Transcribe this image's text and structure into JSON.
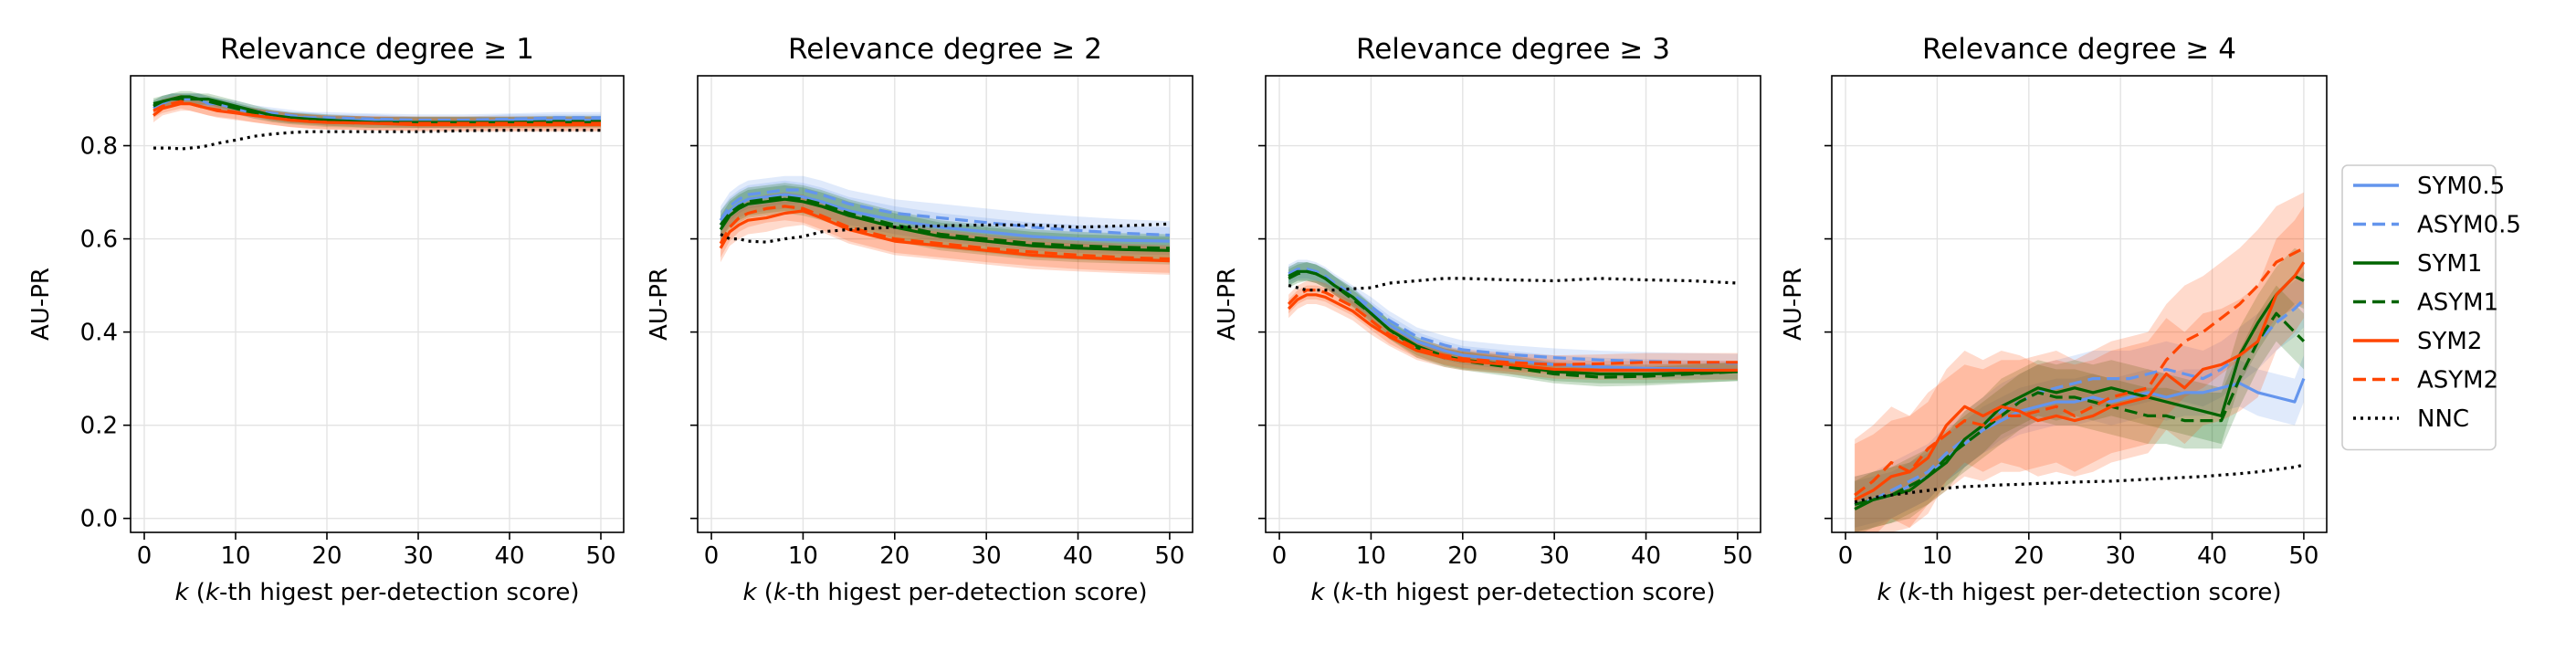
{
  "colors": {
    "SYM0.5": "#6495ED",
    "ASYM0.5": "#6495ED",
    "SYM1": "#006400",
    "ASYM1": "#006400",
    "SYM2": "#FF4500",
    "ASYM2": "#FF4500",
    "NNC": "#000000"
  },
  "legend": {
    "placement": "right of last panel",
    "entries": [
      {
        "name": "SYM0.5",
        "style": "solid"
      },
      {
        "name": "ASYM0.5",
        "style": "dashed"
      },
      {
        "name": "SYM1",
        "style": "solid"
      },
      {
        "name": "ASYM1",
        "style": "dashed"
      },
      {
        "name": "SYM2",
        "style": "solid"
      },
      {
        "name": "ASYM2",
        "style": "dashed"
      },
      {
        "name": "NNC",
        "style": "dotted"
      }
    ]
  },
  "chart_data": [
    {
      "type": "line",
      "title": "Relevance degree ≥ 1",
      "xlabel": "k (k-th higest per-detection score)",
      "ylabel": "AU-PR",
      "xlim": [
        -1.5,
        52.5
      ],
      "ylim": [
        -0.03,
        0.95
      ],
      "xticks": [
        0,
        10,
        20,
        30,
        40,
        50
      ],
      "yticks": [
        0.0,
        0.2,
        0.4,
        0.6,
        0.8
      ],
      "yticklabels": [
        "0.0",
        "0.2",
        "0.4",
        "0.6",
        "0.8"
      ],
      "grid": true,
      "x": [
        1,
        2,
        3,
        4,
        5,
        6,
        7,
        8,
        10,
        12,
        14,
        16,
        18,
        20,
        25,
        30,
        35,
        40,
        45,
        50
      ],
      "series": [
        {
          "name": "SYM0.5",
          "values": [
            0.88,
            0.89,
            0.9,
            0.9,
            0.9,
            0.9,
            0.89,
            0.89,
            0.88,
            0.87,
            0.865,
            0.86,
            0.86,
            0.855,
            0.855,
            0.85,
            0.85,
            0.855,
            0.855,
            0.855
          ],
          "band": 0.012
        },
        {
          "name": "ASYM0.5",
          "values": [
            0.885,
            0.895,
            0.9,
            0.9,
            0.9,
            0.9,
            0.895,
            0.89,
            0.885,
            0.875,
            0.87,
            0.865,
            0.86,
            0.86,
            0.857,
            0.855,
            0.855,
            0.857,
            0.86,
            0.86
          ],
          "band": 0.012
        },
        {
          "name": "SYM1",
          "values": [
            0.89,
            0.895,
            0.9,
            0.905,
            0.905,
            0.9,
            0.9,
            0.895,
            0.885,
            0.875,
            0.865,
            0.86,
            0.857,
            0.855,
            0.85,
            0.85,
            0.85,
            0.85,
            0.85,
            0.85
          ],
          "band": 0.012
        },
        {
          "name": "ASYM1",
          "values": [
            0.885,
            0.895,
            0.9,
            0.9,
            0.9,
            0.9,
            0.895,
            0.89,
            0.88,
            0.87,
            0.862,
            0.858,
            0.855,
            0.852,
            0.85,
            0.85,
            0.85,
            0.85,
            0.852,
            0.852
          ],
          "band": 0.012
        },
        {
          "name": "SYM2",
          "values": [
            0.865,
            0.88,
            0.885,
            0.89,
            0.89,
            0.885,
            0.88,
            0.875,
            0.87,
            0.865,
            0.86,
            0.855,
            0.852,
            0.85,
            0.848,
            0.845,
            0.845,
            0.845,
            0.845,
            0.845
          ],
          "band": 0.015
        },
        {
          "name": "ASYM2",
          "values": [
            0.875,
            0.885,
            0.89,
            0.895,
            0.89,
            0.885,
            0.88,
            0.877,
            0.872,
            0.865,
            0.86,
            0.855,
            0.852,
            0.85,
            0.848,
            0.848,
            0.848,
            0.848,
            0.848,
            0.848
          ],
          "band": 0.015
        },
        {
          "name": "NNC",
          "values": [
            0.795,
            0.795,
            0.795,
            0.793,
            0.795,
            0.797,
            0.8,
            0.805,
            0.812,
            0.82,
            0.825,
            0.828,
            0.83,
            0.83,
            0.83,
            0.83,
            0.832,
            0.833,
            0.833,
            0.833
          ],
          "band": 0
        }
      ]
    },
    {
      "type": "line",
      "title": "Relevance degree ≥ 2",
      "xlabel": "k (k-th higest per-detection score)",
      "ylabel": "AU-PR",
      "xlim": [
        -1.5,
        52.5
      ],
      "ylim": [
        -0.03,
        0.95
      ],
      "xticks": [
        0,
        10,
        20,
        30,
        40,
        50
      ],
      "yticks": [
        0.0,
        0.2,
        0.4,
        0.6,
        0.8
      ],
      "yticklabels": [],
      "grid": true,
      "x": [
        1,
        2,
        3,
        4,
        6,
        8,
        10,
        12,
        15,
        20,
        25,
        30,
        35,
        40,
        45,
        50
      ],
      "series": [
        {
          "name": "SYM0.5",
          "values": [
            0.63,
            0.66,
            0.675,
            0.685,
            0.69,
            0.695,
            0.69,
            0.68,
            0.66,
            0.64,
            0.625,
            0.615,
            0.605,
            0.6,
            0.597,
            0.595
          ],
          "band": 0.03
        },
        {
          "name": "ASYM0.5",
          "values": [
            0.64,
            0.67,
            0.685,
            0.695,
            0.7,
            0.705,
            0.705,
            0.695,
            0.675,
            0.655,
            0.645,
            0.635,
            0.625,
            0.618,
            0.612,
            0.608
          ],
          "band": 0.03
        },
        {
          "name": "SYM1",
          "values": [
            0.62,
            0.65,
            0.665,
            0.675,
            0.68,
            0.685,
            0.68,
            0.67,
            0.65,
            0.625,
            0.605,
            0.595,
            0.585,
            0.58,
            0.577,
            0.575
          ],
          "band": 0.03
        },
        {
          "name": "ASYM1",
          "values": [
            0.63,
            0.655,
            0.67,
            0.68,
            0.685,
            0.69,
            0.685,
            0.675,
            0.655,
            0.63,
            0.61,
            0.6,
            0.59,
            0.585,
            0.582,
            0.58
          ],
          "band": 0.03
        },
        {
          "name": "SYM2",
          "values": [
            0.58,
            0.615,
            0.63,
            0.64,
            0.645,
            0.655,
            0.66,
            0.645,
            0.62,
            0.595,
            0.585,
            0.575,
            0.565,
            0.56,
            0.556,
            0.553
          ],
          "band": 0.03
        },
        {
          "name": "ASYM2",
          "values": [
            0.59,
            0.625,
            0.645,
            0.655,
            0.665,
            0.67,
            0.665,
            0.65,
            0.625,
            0.6,
            0.59,
            0.58,
            0.572,
            0.565,
            0.56,
            0.557
          ],
          "band": 0.03
        },
        {
          "name": "NNC",
          "values": [
            0.61,
            0.6,
            0.6,
            0.595,
            0.593,
            0.6,
            0.605,
            0.615,
            0.62,
            0.625,
            0.628,
            0.63,
            0.63,
            0.625,
            0.628,
            0.632
          ],
          "band": 0
        }
      ]
    },
    {
      "type": "line",
      "title": "Relevance degree ≥ 3",
      "xlabel": "k (k-th higest per-detection score)",
      "ylabel": "AU-PR",
      "xlim": [
        -1.5,
        52.5
      ],
      "ylim": [
        -0.03,
        0.95
      ],
      "xticks": [
        0,
        10,
        20,
        30,
        40,
        50
      ],
      "yticks": [
        0.0,
        0.2,
        0.4,
        0.6,
        0.8
      ],
      "yticklabels": [],
      "grid": true,
      "x": [
        1,
        2,
        3,
        4,
        5,
        6,
        8,
        10,
        12,
        15,
        18,
        20,
        25,
        30,
        35,
        40,
        45,
        50
      ],
      "series": [
        {
          "name": "SYM0.5",
          "values": [
            0.52,
            0.53,
            0.53,
            0.525,
            0.515,
            0.5,
            0.475,
            0.445,
            0.415,
            0.38,
            0.36,
            0.35,
            0.34,
            0.33,
            0.325,
            0.322,
            0.32,
            0.318
          ],
          "band": 0.02
        },
        {
          "name": "ASYM0.5",
          "values": [
            0.525,
            0.535,
            0.535,
            0.53,
            0.52,
            0.505,
            0.48,
            0.455,
            0.425,
            0.39,
            0.372,
            0.362,
            0.352,
            0.345,
            0.34,
            0.337,
            0.335,
            0.333
          ],
          "band": 0.02
        },
        {
          "name": "SYM1",
          "values": [
            0.52,
            0.53,
            0.53,
            0.525,
            0.515,
            0.5,
            0.475,
            0.44,
            0.405,
            0.37,
            0.348,
            0.34,
            0.33,
            0.315,
            0.31,
            0.31,
            0.312,
            0.315
          ],
          "band": 0.02
        },
        {
          "name": "ASYM1",
          "values": [
            0.515,
            0.525,
            0.53,
            0.525,
            0.515,
            0.5,
            0.47,
            0.44,
            0.405,
            0.365,
            0.345,
            0.338,
            0.325,
            0.31,
            0.303,
            0.305,
            0.31,
            0.315
          ],
          "band": 0.02
        },
        {
          "name": "SYM2",
          "values": [
            0.45,
            0.47,
            0.48,
            0.48,
            0.475,
            0.465,
            0.445,
            0.415,
            0.39,
            0.36,
            0.345,
            0.338,
            0.33,
            0.32,
            0.318,
            0.318,
            0.318,
            0.318
          ],
          "band": 0.02
        },
        {
          "name": "ASYM2",
          "values": [
            0.46,
            0.48,
            0.49,
            0.49,
            0.485,
            0.475,
            0.455,
            0.425,
            0.395,
            0.365,
            0.35,
            0.343,
            0.335,
            0.33,
            0.332,
            0.335,
            0.335,
            0.335
          ],
          "band": 0.02
        },
        {
          "name": "NNC",
          "values": [
            0.5,
            0.495,
            0.49,
            0.49,
            0.49,
            0.49,
            0.493,
            0.495,
            0.505,
            0.51,
            0.515,
            0.515,
            0.512,
            0.51,
            0.515,
            0.512,
            0.51,
            0.505
          ],
          "band": 0
        }
      ]
    },
    {
      "type": "line",
      "title": "Relevance degree ≥ 4",
      "xlabel": "k (k-th higest per-detection score)",
      "ylabel": "AU-PR",
      "xlim": [
        -1.5,
        52.5
      ],
      "ylim": [
        -0.03,
        0.95
      ],
      "xticks": [
        0,
        10,
        20,
        30,
        40,
        50
      ],
      "yticks": [
        0.0,
        0.2,
        0.4,
        0.6,
        0.8
      ],
      "yticklabels": [],
      "grid": true,
      "x": [
        1,
        3,
        5,
        7,
        9,
        11,
        13,
        15,
        17,
        19,
        21,
        23,
        25,
        27,
        29,
        31,
        33,
        35,
        37,
        39,
        41,
        43,
        45,
        47,
        49,
        50
      ],
      "series": [
        {
          "name": "SYM0.5",
          "values": [
            0.03,
            0.04,
            0.05,
            0.07,
            0.09,
            0.13,
            0.16,
            0.19,
            0.21,
            0.23,
            0.24,
            0.25,
            0.25,
            0.26,
            0.25,
            0.26,
            0.27,
            0.26,
            0.27,
            0.27,
            0.28,
            0.29,
            0.27,
            0.26,
            0.25,
            0.3
          ],
          "band": 0.05
        },
        {
          "name": "ASYM0.5",
          "values": [
            0.03,
            0.04,
            0.06,
            0.08,
            0.1,
            0.14,
            0.17,
            0.2,
            0.23,
            0.25,
            0.27,
            0.28,
            0.29,
            0.3,
            0.3,
            0.3,
            0.31,
            0.32,
            0.31,
            0.3,
            0.32,
            0.35,
            0.38,
            0.42,
            0.45,
            0.47
          ],
          "band": 0.06
        },
        {
          "name": "SYM1",
          "values": [
            0.02,
            0.04,
            0.05,
            0.06,
            0.09,
            0.12,
            0.17,
            0.2,
            0.24,
            0.26,
            0.28,
            0.27,
            0.28,
            0.27,
            0.28,
            0.27,
            0.26,
            0.25,
            0.24,
            0.23,
            0.22,
            0.35,
            0.42,
            0.48,
            0.52,
            0.51
          ],
          "band": 0.06
        },
        {
          "name": "ASYM1",
          "values": [
            0.03,
            0.04,
            0.05,
            0.07,
            0.09,
            0.13,
            0.16,
            0.19,
            0.22,
            0.25,
            0.27,
            0.26,
            0.26,
            0.25,
            0.24,
            0.23,
            0.22,
            0.22,
            0.21,
            0.21,
            0.21,
            0.3,
            0.38,
            0.44,
            0.4,
            0.38
          ],
          "band": 0.06
        },
        {
          "name": "SYM2",
          "values": [
            0.04,
            0.06,
            0.09,
            0.1,
            0.13,
            0.2,
            0.24,
            0.22,
            0.24,
            0.23,
            0.21,
            0.22,
            0.21,
            0.22,
            0.24,
            0.25,
            0.26,
            0.31,
            0.28,
            0.32,
            0.33,
            0.35,
            0.38,
            0.48,
            0.52,
            0.55
          ],
          "band": 0.12
        },
        {
          "name": "ASYM2",
          "values": [
            0.05,
            0.08,
            0.12,
            0.1,
            0.15,
            0.18,
            0.21,
            0.2,
            0.22,
            0.22,
            0.23,
            0.24,
            0.22,
            0.24,
            0.26,
            0.27,
            0.28,
            0.34,
            0.38,
            0.4,
            0.43,
            0.46,
            0.5,
            0.55,
            0.57,
            0.58
          ],
          "band": 0.12
        },
        {
          "name": "NNC",
          "values": [
            0.035,
            0.045,
            0.05,
            0.055,
            0.06,
            0.065,
            0.068,
            0.07,
            0.072,
            0.073,
            0.075,
            0.076,
            0.078,
            0.079,
            0.08,
            0.082,
            0.084,
            0.086,
            0.088,
            0.09,
            0.093,
            0.096,
            0.1,
            0.105,
            0.11,
            0.115
          ],
          "band": 0
        }
      ]
    }
  ]
}
